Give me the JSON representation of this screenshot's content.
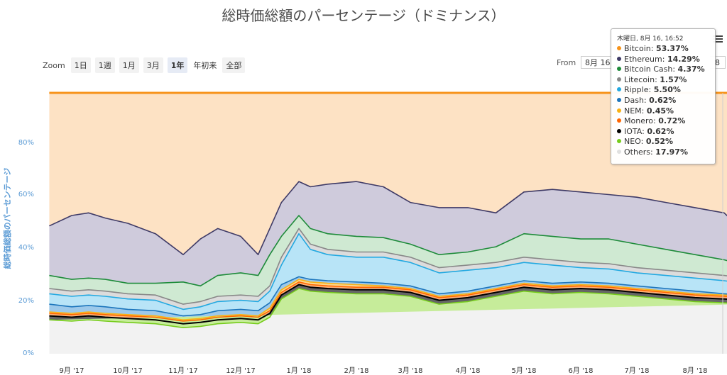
{
  "title": "総時価総額のパーセンテージ（ドミナンス）",
  "zoom": {
    "label": "Zoom",
    "buttons": [
      "1日",
      "1週",
      "1月",
      "3月",
      "1年",
      "年初来",
      "全部"
    ],
    "active_index": 4
  },
  "range": {
    "from_label": "From",
    "from_value": "8月 16",
    "to_value": "8"
  },
  "icons": {
    "menu": "hamburger-menu-icon"
  },
  "chart_data": {
    "type": "area",
    "title": "総時価総額のパーセンテージ（ドミナンス）",
    "ylabel": "総時価総額のパーセンテージ",
    "ylim": [
      0,
      100
    ],
    "yticks": [
      "0%",
      "20%",
      "40%",
      "60%",
      "80%"
    ],
    "xticks": [
      "9月 '17",
      "10月 '17",
      "11月 '17",
      "12月 '17",
      "1月 '18",
      "2月 '18",
      "3月 '18",
      "4月 '18",
      "5月 '18",
      "6月 '18",
      "7月 '18",
      "8月 '18"
    ],
    "stacking": "percent",
    "order_bottom_to_top": [
      "Others",
      "NEO",
      "IOTA",
      "Monero",
      "NEM",
      "Dash",
      "Ripple",
      "Litecoin",
      "Bitcoin Cash",
      "Ethereum",
      "Bitcoin"
    ],
    "boundaries": {
      "months": [
        -0.4,
        0,
        0.3,
        0.6,
        1,
        1.5,
        2,
        2.3,
        2.6,
        3,
        3.3,
        3.5,
        3.7,
        4,
        4.2,
        4.5,
        5,
        5.5,
        6,
        6.5,
        7,
        7.5,
        8,
        8.5,
        9,
        9.5,
        10,
        10.5,
        11,
        11.5,
        11.85
      ],
      "neo": [
        13,
        12.5,
        13,
        12.5,
        12,
        11.5,
        10,
        10.5,
        11.5,
        12,
        11.5,
        14,
        21,
        25,
        24,
        23.5,
        23,
        23,
        22,
        19,
        20,
        22,
        24,
        23,
        23.5,
        23,
        22,
        21,
        20,
        19.5,
        19
      ],
      "iota": [
        14.5,
        14,
        14.5,
        14,
        13.5,
        13,
        11.5,
        12,
        13,
        13.5,
        13,
        15.5,
        22.5,
        26.5,
        25.5,
        25,
        24.5,
        24.5,
        23.5,
        20.5,
        21.5,
        23.5,
        25.5,
        24.5,
        25,
        24.5,
        23.5,
        22.5,
        21.5,
        21,
        20.5
      ],
      "monero": [
        15.5,
        15,
        15.5,
        15,
        14.5,
        14,
        12.5,
        13,
        14,
        14.5,
        14,
        16.5,
        23.5,
        27.5,
        26.5,
        26,
        25.5,
        25.5,
        24.5,
        21.5,
        22.5,
        24.5,
        26.5,
        25.5,
        26,
        25.5,
        24.5,
        23.5,
        22.5,
        22,
        21.5
      ],
      "nem": [
        16,
        15.5,
        16,
        15.5,
        15,
        14.5,
        13,
        13.5,
        14.5,
        15,
        14.5,
        17.5,
        24.5,
        28.5,
        27.5,
        27,
        26.5,
        26,
        25,
        22,
        23,
        25,
        27,
        26,
        26.5,
        26,
        25,
        24,
        23,
        22.5,
        22
      ],
      "dash": [
        19,
        18,
        18.5,
        18,
        17,
        16.5,
        14.5,
        15,
        16.5,
        17,
        16.5,
        19.5,
        26.5,
        29.5,
        28.5,
        28,
        27.5,
        27,
        26,
        23,
        24,
        26,
        28,
        27,
        27.5,
        27,
        26,
        25,
        24,
        23,
        22.5
      ],
      "ripple": [
        23,
        22,
        22.5,
        22,
        21,
        20.5,
        17,
        18,
        20,
        20.5,
        20,
        24,
        34,
        46,
        40,
        38,
        37,
        37,
        35,
        31,
        32,
        33,
        35,
        34,
        33,
        32.5,
        31,
        30,
        29,
        28,
        27
      ],
      "litecoin": [
        25,
        24,
        24.5,
        24,
        23,
        22.5,
        19,
        20,
        22,
        22.5,
        22,
        26,
        37,
        48,
        42,
        40,
        39,
        39,
        37,
        33,
        34,
        35,
        37,
        36,
        35,
        34.5,
        33,
        32,
        31,
        30,
        29
      ],
      "bitcoin_cash": [
        30,
        28.5,
        29,
        28.5,
        27,
        27,
        27.5,
        26,
        30,
        31,
        30,
        38,
        45,
        53,
        48,
        46,
        45,
        44.5,
        42,
        38,
        39,
        41,
        46,
        45,
        44,
        44,
        42,
        40,
        38,
        36,
        34
      ],
      "ethereum": [
        49,
        53,
        54,
        52,
        50,
        46,
        38,
        44,
        48,
        45,
        38,
        48,
        58,
        66,
        64,
        65,
        66,
        64,
        58,
        56,
        56,
        54,
        62,
        63,
        62,
        61,
        60,
        58,
        56,
        54,
        46.5
      ],
      "bitcoin": [
        100,
        100,
        100,
        100,
        100,
        100,
        100,
        100,
        100,
        100,
        100,
        100,
        100,
        100,
        100,
        100,
        100,
        100,
        100,
        100,
        100,
        100,
        100,
        100,
        100,
        100,
        100,
        100,
        100,
        100,
        100
      ]
    },
    "series": [
      {
        "name": "Bitcoin",
        "color": "#f7931a",
        "fill": "#fde2c4"
      },
      {
        "name": "Ethereum",
        "color": "#3e3a66",
        "fill": "#cfcbdc"
      },
      {
        "name": "Bitcoin Cash",
        "color": "#1e8b3a",
        "fill": "#cfe9d2"
      },
      {
        "name": "Litecoin",
        "color": "#888888",
        "fill": "#dcdcdc"
      },
      {
        "name": "Ripple",
        "color": "#23a9e1",
        "fill": "#b8e4f7"
      },
      {
        "name": "Dash",
        "color": "#1c75bc",
        "fill": "#9dc9ea"
      },
      {
        "name": "NEM",
        "color": "#f9b114",
        "fill": "#fcd78a"
      },
      {
        "name": "Monero",
        "color": "#ff6600",
        "fill": "#ffb27a"
      },
      {
        "name": "IOTA",
        "color": "#000000",
        "fill": "#666666"
      },
      {
        "name": "NEO",
        "color": "#76cc1c",
        "fill": "#c6ec9a"
      },
      {
        "name": "Others",
        "color": "#e0e0e0",
        "fill": "#f2f2f2"
      }
    ]
  },
  "tooltip": {
    "header": "木曜日, 8月 16, 16:52",
    "rows": [
      {
        "name": "Bitcoin",
        "value": "53.37%",
        "color": "#f7931a"
      },
      {
        "name": "Ethereum",
        "value": "14.29%",
        "color": "#3e3a66"
      },
      {
        "name": "Bitcoin Cash",
        "value": "4.37%",
        "color": "#1e8b3a"
      },
      {
        "name": "Litecoin",
        "value": "1.57%",
        "color": "#888888"
      },
      {
        "name": "Ripple",
        "value": "5.50%",
        "color": "#23a9e1"
      },
      {
        "name": "Dash",
        "value": "0.62%",
        "color": "#1c75bc"
      },
      {
        "name": "NEM",
        "value": "0.45%",
        "color": "#f9b114"
      },
      {
        "name": "Monero",
        "value": "0.72%",
        "color": "#ff6600"
      },
      {
        "name": "IOTA",
        "value": "0.62%",
        "color": "#000000"
      },
      {
        "name": "NEO",
        "value": "0.52%",
        "color": "#76cc1c"
      },
      {
        "name": "Others",
        "value": "17.97%",
        "color": "#e0e0e0"
      }
    ]
  }
}
